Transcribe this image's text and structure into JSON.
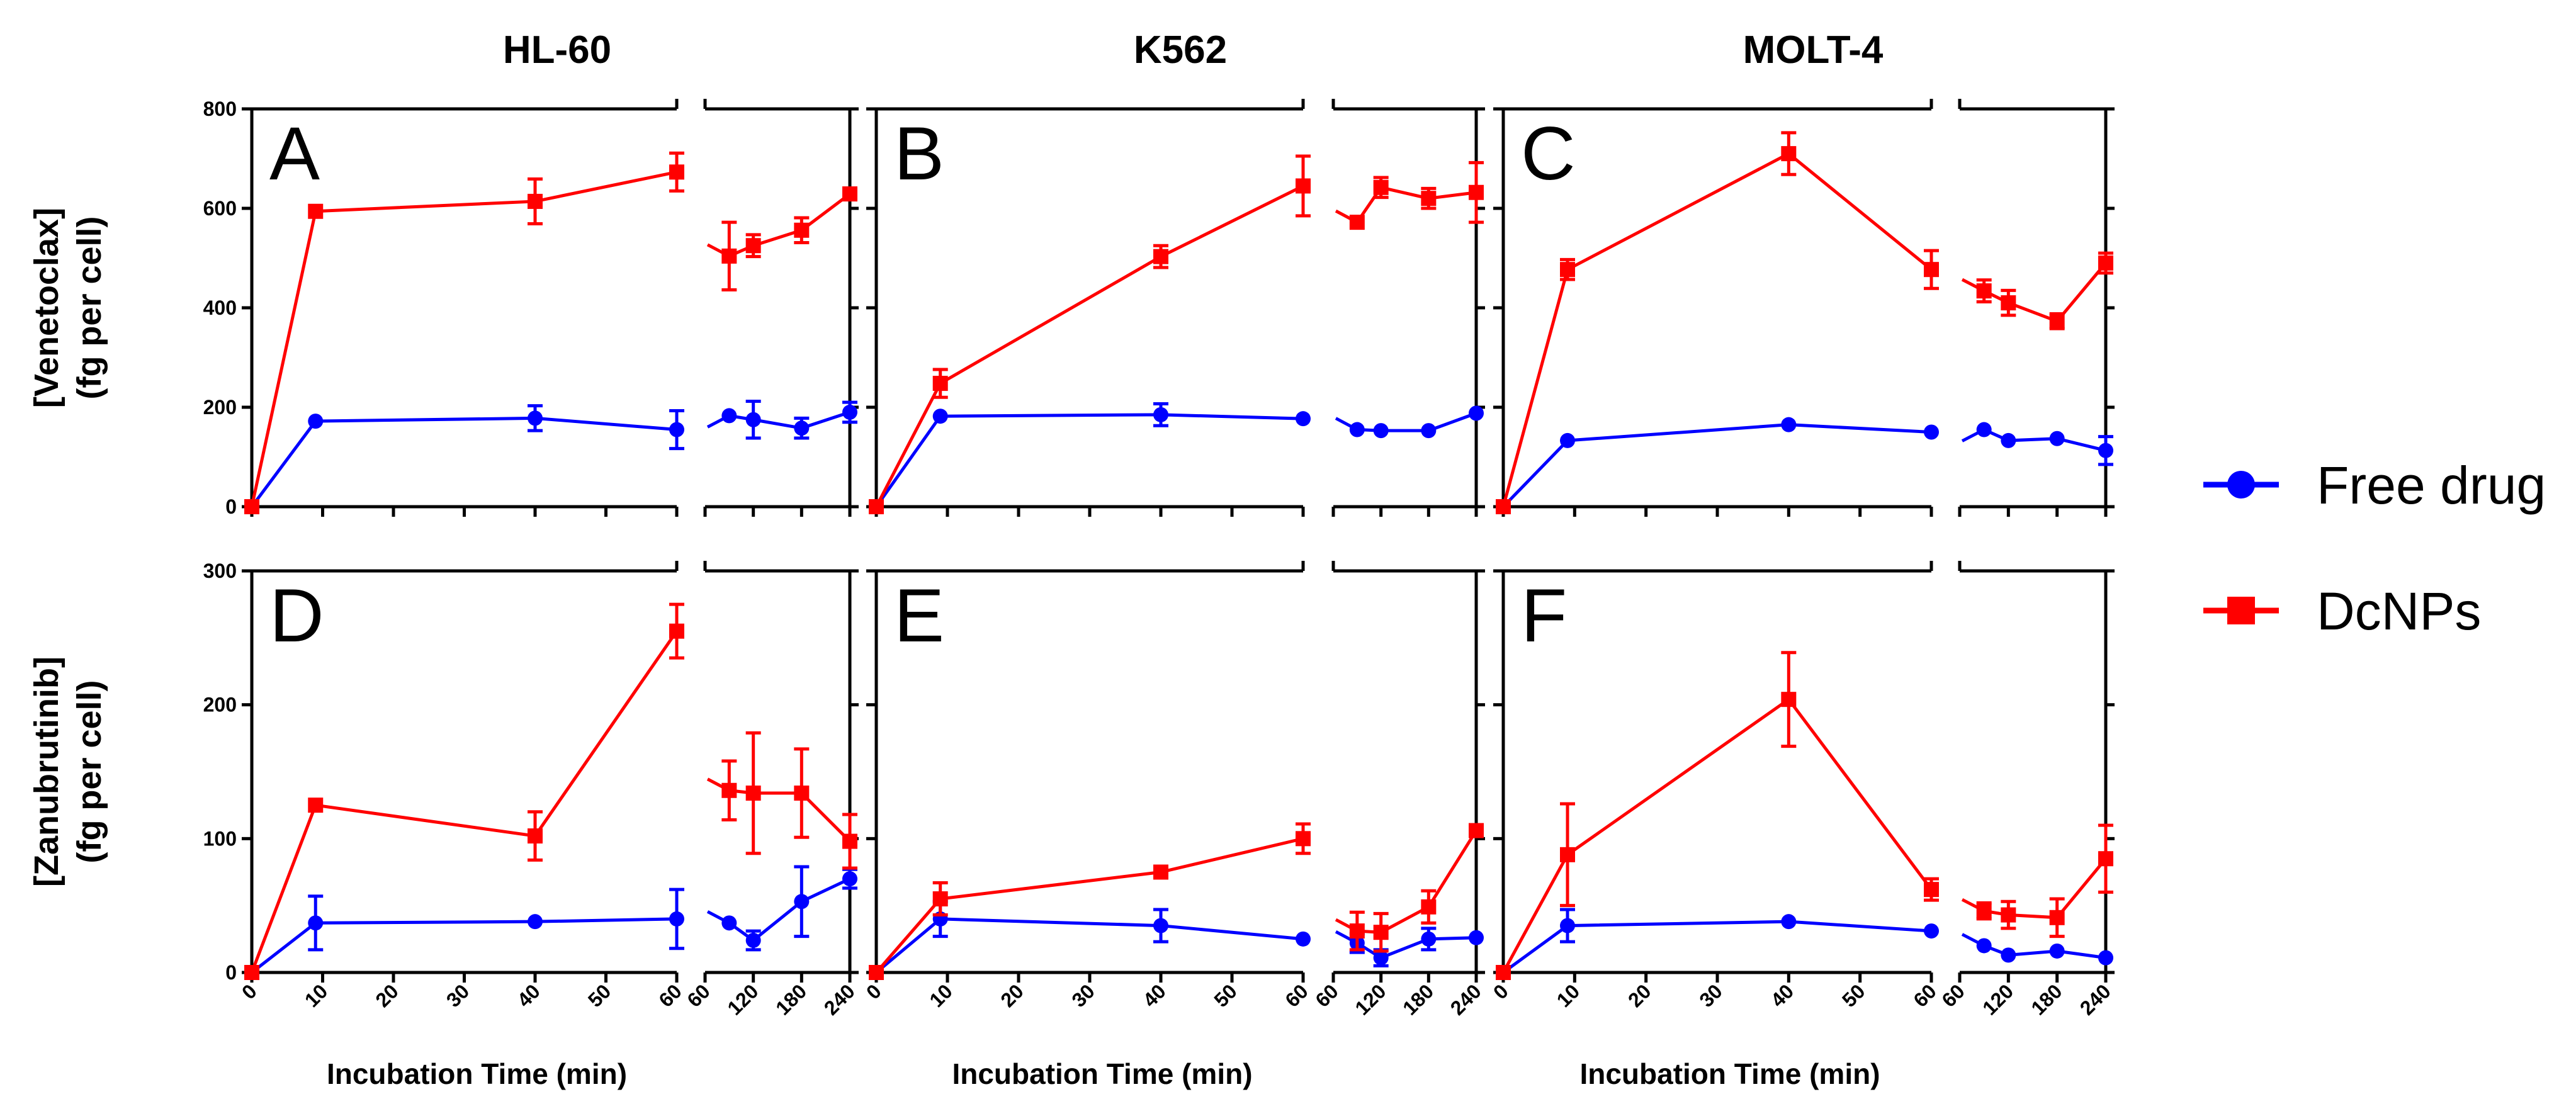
{
  "colors": {
    "free": "#0000ff",
    "dcnp": "#ff0000",
    "axis": "#000000"
  },
  "legend": {
    "placement": "right",
    "items": [
      {
        "label": "Free drug",
        "series": "free",
        "marker": "circle"
      },
      {
        "label": "DcNPs",
        "series": "dcnp",
        "marker": "square"
      }
    ]
  },
  "column_titles": [
    "HL-60",
    "K562",
    "MOLT-4"
  ],
  "row_ylabels": [
    {
      "line1": "[Venetoclax]",
      "line2": "(fg per cell)"
    },
    {
      "line1": "[Zanubrutinib]",
      "line2": "(fg per cell)"
    }
  ],
  "xlabel": "Incubation Time (min)",
  "x_left": {
    "range": [
      0,
      60
    ],
    "ticks": [
      "0",
      "10",
      "20",
      "30",
      "40",
      "50",
      "60"
    ]
  },
  "x_right": {
    "range": [
      60,
      240
    ],
    "ticks": [
      "60",
      "120",
      "180",
      "240"
    ]
  },
  "rows": [
    {
      "ylim": [
        0,
        800
      ],
      "ytick_labels": [
        "0",
        "200",
        "400",
        "600",
        "800"
      ]
    },
    {
      "ylim": [
        0,
        300
      ],
      "ytick_labels": [
        "0",
        "100",
        "200",
        "300"
      ]
    }
  ],
  "chart_data": [
    {
      "panel": "A",
      "type": "line",
      "row": 0,
      "col": 0,
      "cell_line": "HL-60",
      "drug": "Venetoclax",
      "ylim": [
        0,
        800
      ],
      "series": [
        {
          "name": "Free drug",
          "key": "free",
          "early": {
            "x": [
              0,
              9,
              40,
              60
            ],
            "y": [
              0,
              172,
              178,
              155
            ],
            "err": [
              0,
              0,
              25,
              38
            ]
          },
          "late": {
            "x": [
              90,
              120,
              180,
              240
            ],
            "y": [
              183,
              175,
              158,
              190
            ],
            "err": [
              0,
              37,
              20,
              20
            ]
          }
        },
        {
          "name": "DcNPs",
          "key": "dcnp",
          "early": {
            "x": [
              0,
              9,
              40,
              60
            ],
            "y": [
              0,
              594,
              614,
              673
            ],
            "err": [
              0,
              0,
              45,
              38
            ]
          },
          "late": {
            "x": [
              90,
              120,
              180,
              240
            ],
            "y": [
              504,
              525,
              556,
              629
            ],
            "err": [
              68,
              22,
              25,
              0
            ]
          }
        }
      ]
    },
    {
      "panel": "B",
      "type": "line",
      "row": 0,
      "col": 1,
      "cell_line": "K562",
      "drug": "Venetoclax",
      "ylim": [
        0,
        800
      ],
      "series": [
        {
          "name": "Free drug",
          "key": "free",
          "early": {
            "x": [
              0,
              9,
              40,
              60
            ],
            "y": [
              0,
              182,
              185,
              177
            ],
            "err": [
              0,
              0,
              22,
              0
            ]
          },
          "late": {
            "x": [
              90,
              120,
              180,
              240
            ],
            "y": [
              155,
              153,
              153,
              188
            ],
            "err": [
              0,
              0,
              0,
              0
            ]
          }
        },
        {
          "name": "DcNPs",
          "key": "dcnp",
          "early": {
            "x": [
              0,
              9,
              40,
              60
            ],
            "y": [
              0,
              248,
              503,
              645
            ],
            "err": [
              0,
              28,
              22,
              60
            ]
          },
          "late": {
            "x": [
              90,
              120,
              180,
              240
            ],
            "y": [
              572,
              642,
              620,
              632
            ],
            "err": [
              0,
              20,
              20,
              60
            ]
          }
        }
      ]
    },
    {
      "panel": "C",
      "type": "line",
      "row": 0,
      "col": 2,
      "cell_line": "MOLT-4",
      "drug": "Venetoclax",
      "ylim": [
        0,
        800
      ],
      "series": [
        {
          "name": "Free drug",
          "key": "free",
          "early": {
            "x": [
              0,
              9,
              40,
              60
            ],
            "y": [
              0,
              133,
              165,
              150
            ],
            "err": [
              0,
              0,
              0,
              0
            ]
          },
          "late": {
            "x": [
              90,
              120,
              180,
              240
            ],
            "y": [
              155,
              133,
              137,
              113
            ],
            "err": [
              0,
              0,
              0,
              28
            ]
          }
        },
        {
          "name": "DcNPs",
          "key": "dcnp",
          "early": {
            "x": [
              0,
              9,
              40,
              60
            ],
            "y": [
              0,
              477,
              710,
              477
            ],
            "err": [
              0,
              20,
              42,
              38
            ]
          },
          "late": {
            "x": [
              90,
              120,
              180,
              240
            ],
            "y": [
              434,
              410,
              373,
              490
            ],
            "err": [
              22,
              25,
              15,
              20
            ]
          }
        }
      ]
    },
    {
      "panel": "D",
      "type": "line",
      "row": 1,
      "col": 0,
      "cell_line": "HL-60",
      "drug": "Zanubrutinib",
      "ylim": [
        0,
        300
      ],
      "series": [
        {
          "name": "Free drug",
          "key": "free",
          "early": {
            "x": [
              0,
              9,
              40,
              60
            ],
            "y": [
              0,
              37,
              38,
              40
            ],
            "err": [
              0,
              20,
              0,
              22
            ]
          },
          "late": {
            "x": [
              90,
              120,
              180,
              240
            ],
            "y": [
              37,
              24,
              53,
              70
            ],
            "err": [
              0,
              7,
              26,
              7
            ]
          }
        },
        {
          "name": "DcNPs",
          "key": "dcnp",
          "early": {
            "x": [
              0,
              9,
              40,
              60
            ],
            "y": [
              0,
              125,
              102,
              255
            ],
            "err": [
              0,
              0,
              18,
              20
            ]
          },
          "late": {
            "x": [
              90,
              120,
              180,
              240
            ],
            "y": [
              136,
              134,
              134,
              98
            ],
            "err": [
              22,
              45,
              33,
              20
            ]
          }
        }
      ]
    },
    {
      "panel": "E",
      "type": "line",
      "row": 1,
      "col": 1,
      "cell_line": "K562",
      "drug": "Zanubrutinib",
      "ylim": [
        0,
        300
      ],
      "series": [
        {
          "name": "Free drug",
          "key": "free",
          "early": {
            "x": [
              0,
              9,
              40,
              60
            ],
            "y": [
              0,
              40,
              35,
              25
            ],
            "err": [
              0,
              13,
              12,
              0
            ]
          },
          "late": {
            "x": [
              90,
              120,
              180,
              240
            ],
            "y": [
              22,
              11,
              25,
              26
            ],
            "err": [
              7,
              6,
              8,
              0
            ]
          }
        },
        {
          "name": "DcNPs",
          "key": "dcnp",
          "early": {
            "x": [
              0,
              9,
              40,
              60
            ],
            "y": [
              0,
              55,
              75,
              100
            ],
            "err": [
              0,
              12,
              0,
              11
            ]
          },
          "late": {
            "x": [
              90,
              120,
              180,
              240
            ],
            "y": [
              31,
              30,
              49,
              106
            ],
            "err": [
              14,
              14,
              12,
              0
            ]
          }
        }
      ]
    },
    {
      "panel": "F",
      "type": "line",
      "row": 1,
      "col": 2,
      "cell_line": "MOLT-4",
      "drug": "Zanubrutinib",
      "ylim": [
        0,
        300
      ],
      "series": [
        {
          "name": "Free drug",
          "key": "free",
          "early": {
            "x": [
              0,
              9,
              40,
              60
            ],
            "y": [
              0,
              35,
              38,
              31
            ],
            "err": [
              0,
              12,
              0,
              0
            ]
          },
          "late": {
            "x": [
              90,
              120,
              180,
              240
            ],
            "y": [
              20,
              13,
              16,
              11
            ],
            "err": [
              0,
              0,
              0,
              0
            ]
          }
        },
        {
          "name": "DcNPs",
          "key": "dcnp",
          "early": {
            "x": [
              0,
              9,
              40,
              60
            ],
            "y": [
              0,
              88,
              204,
              62
            ],
            "err": [
              0,
              38,
              35,
              8
            ]
          },
          "late": {
            "x": [
              90,
              120,
              180,
              240
            ],
            "y": [
              46,
              43,
              41,
              85
            ],
            "err": [
              6,
              10,
              14,
              25
            ]
          }
        }
      ]
    }
  ]
}
